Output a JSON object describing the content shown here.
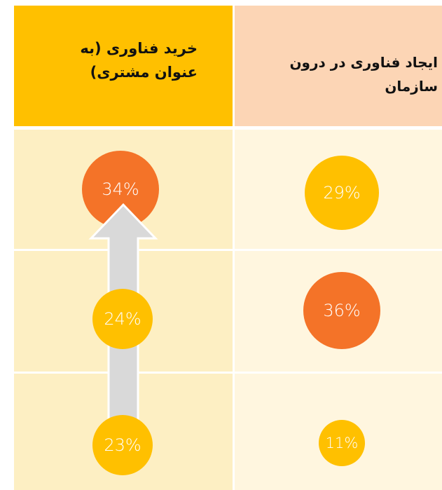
{
  "table": {
    "headers": [
      "خرید فناوری (به عنوان مشتری)",
      "ایجاد فناوری در درون سازمان"
    ],
    "rows": [
      [
        "34%",
        "29%"
      ],
      [
        "24%",
        "36%"
      ],
      [
        "23%",
        "11%"
      ]
    ]
  }
}
